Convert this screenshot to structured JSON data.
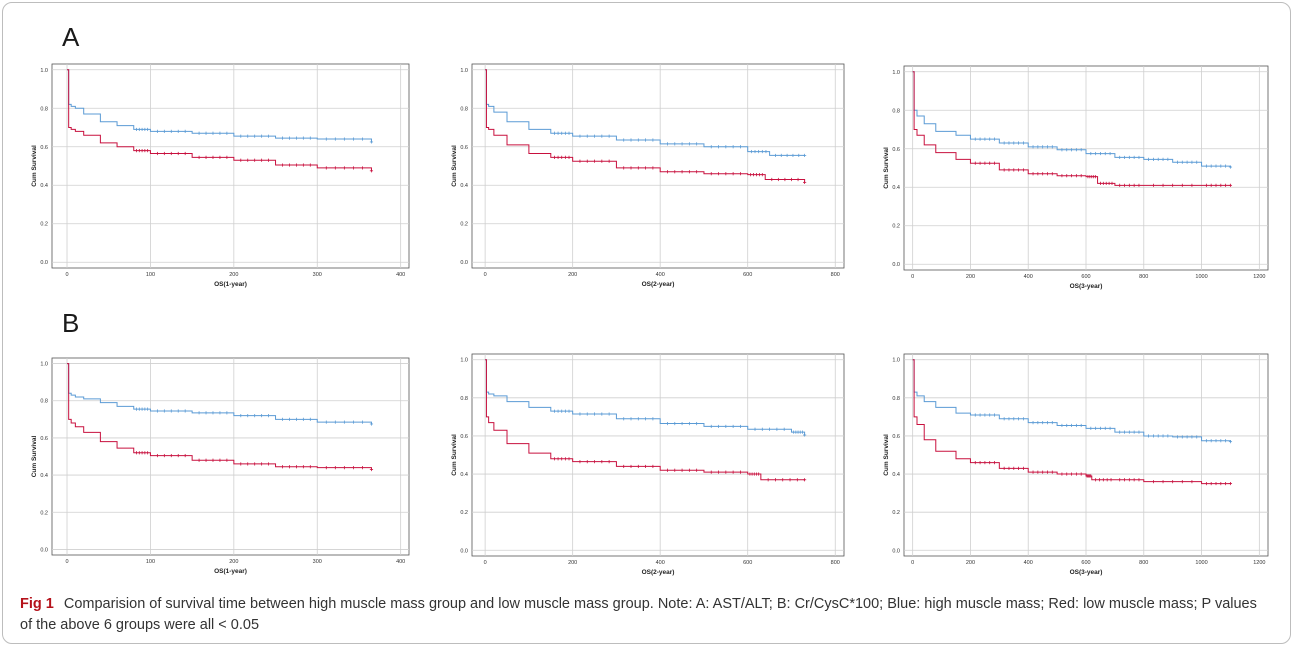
{
  "panels": {
    "a_label": "A",
    "b_label": "B"
  },
  "caption": {
    "fig_label": "Fig 1",
    "text": "Comparision of survival time between high muscle mass group and low muscle mass group. Note: A: AST/ALT; B: Cr/CysC*100; Blue: high muscle mass; Red: low muscle mass; P values of the above 6 groups were all < 0.05"
  },
  "colors": {
    "high": "#5b9bd5",
    "low": "#c8103e",
    "grid": "#cfcfcf",
    "axis": "#555555"
  },
  "chart_data": [
    {
      "type": "line",
      "panel": "A",
      "xlabel": "OS(1-year)",
      "ylabel": "Cum Survival",
      "xlim": [
        -18,
        410
      ],
      "ylim": [
        -0.03,
        1.03
      ],
      "xticks": [
        0,
        100,
        200,
        300,
        400
      ],
      "yticks": [
        0.0,
        0.2,
        0.4,
        0.6,
        0.8,
        1.0
      ],
      "grid": true,
      "series": [
        {
          "x": [
            0,
            2,
            5,
            10,
            20,
            40,
            60,
            80,
            100,
            150,
            200,
            250,
            300,
            365
          ],
          "values": [
            1.0,
            0.82,
            0.81,
            0.8,
            0.77,
            0.73,
            0.71,
            0.69,
            0.68,
            0.67,
            0.655,
            0.645,
            0.64,
            0.625
          ]
        },
        {
          "x": [
            0,
            2,
            5,
            10,
            20,
            40,
            60,
            80,
            100,
            150,
            200,
            250,
            300,
            365
          ],
          "values": [
            1.0,
            0.7,
            0.69,
            0.68,
            0.66,
            0.62,
            0.6,
            0.58,
            0.565,
            0.545,
            0.53,
            0.505,
            0.49,
            0.475
          ]
        }
      ]
    },
    {
      "type": "line",
      "panel": "A",
      "xlabel": "OS(2-year)",
      "ylabel": "Cum Survival",
      "xlim": [
        -30,
        820
      ],
      "ylim": [
        -0.03,
        1.03
      ],
      "xticks": [
        0,
        200,
        400,
        600,
        800
      ],
      "yticks": [
        0.0,
        0.2,
        0.4,
        0.6,
        0.8,
        1.0
      ],
      "grid": true,
      "series": [
        {
          "x": [
            0,
            3,
            8,
            20,
            50,
            100,
            150,
            200,
            300,
            400,
            500,
            600,
            650,
            730
          ],
          "values": [
            1.0,
            0.82,
            0.81,
            0.78,
            0.73,
            0.69,
            0.67,
            0.655,
            0.635,
            0.615,
            0.6,
            0.575,
            0.555,
            0.555
          ]
        },
        {
          "x": [
            0,
            3,
            8,
            20,
            50,
            100,
            150,
            200,
            300,
            400,
            500,
            600,
            640,
            730
          ],
          "values": [
            1.0,
            0.7,
            0.69,
            0.66,
            0.61,
            0.565,
            0.545,
            0.525,
            0.49,
            0.47,
            0.46,
            0.455,
            0.43,
            0.415
          ]
        }
      ]
    },
    {
      "type": "line",
      "panel": "A",
      "xlabel": "OS(3-year)",
      "ylabel": "Cum Survival",
      "xlim": [
        -30,
        1230
      ],
      "ylim": [
        -0.03,
        1.03
      ],
      "xticks": [
        0,
        200,
        400,
        600,
        800,
        1000,
        1200
      ],
      "yticks": [
        0.0,
        0.2,
        0.4,
        0.6,
        0.8,
        1.0
      ],
      "grid": true,
      "series": [
        {
          "x": [
            0,
            5,
            15,
            40,
            80,
            150,
            200,
            300,
            400,
            500,
            600,
            700,
            800,
            900,
            1000,
            1100
          ],
          "values": [
            1.0,
            0.8,
            0.77,
            0.73,
            0.69,
            0.67,
            0.65,
            0.63,
            0.61,
            0.595,
            0.575,
            0.555,
            0.545,
            0.53,
            0.51,
            0.505
          ]
        },
        {
          "x": [
            0,
            5,
            15,
            40,
            80,
            150,
            200,
            300,
            400,
            500,
            600,
            640,
            700,
            800,
            1000,
            1100
          ],
          "values": [
            1.0,
            0.7,
            0.67,
            0.62,
            0.58,
            0.545,
            0.525,
            0.49,
            0.47,
            0.46,
            0.455,
            0.42,
            0.41,
            0.41,
            0.41,
            0.41
          ]
        }
      ]
    },
    {
      "type": "line",
      "panel": "B",
      "xlabel": "OS(1-year)",
      "ylabel": "Cum Survival",
      "xlim": [
        -18,
        410
      ],
      "ylim": [
        -0.03,
        1.03
      ],
      "xticks": [
        0,
        100,
        200,
        300,
        400
      ],
      "yticks": [
        0.0,
        0.2,
        0.4,
        0.6,
        0.8,
        1.0
      ],
      "grid": true,
      "series": [
        {
          "x": [
            0,
            2,
            5,
            10,
            20,
            40,
            60,
            80,
            100,
            150,
            200,
            250,
            300,
            365
          ],
          "values": [
            1.0,
            0.84,
            0.83,
            0.82,
            0.81,
            0.79,
            0.77,
            0.755,
            0.745,
            0.735,
            0.72,
            0.7,
            0.685,
            0.675
          ]
        },
        {
          "x": [
            0,
            2,
            5,
            10,
            20,
            40,
            60,
            80,
            100,
            150,
            200,
            250,
            300,
            365
          ],
          "values": [
            1.0,
            0.7,
            0.68,
            0.66,
            0.63,
            0.58,
            0.545,
            0.52,
            0.505,
            0.48,
            0.46,
            0.445,
            0.44,
            0.43
          ]
        }
      ]
    },
    {
      "type": "line",
      "panel": "B",
      "xlabel": "OS(2-year)",
      "ylabel": "Cum Survival",
      "xlim": [
        -30,
        820
      ],
      "ylim": [
        -0.03,
        1.03
      ],
      "xticks": [
        0,
        200,
        400,
        600,
        800
      ],
      "yticks": [
        0.0,
        0.2,
        0.4,
        0.6,
        0.8,
        1.0
      ],
      "grid": true,
      "series": [
        {
          "x": [
            0,
            3,
            8,
            20,
            50,
            100,
            150,
            200,
            300,
            400,
            500,
            600,
            700,
            730
          ],
          "values": [
            1.0,
            0.83,
            0.82,
            0.81,
            0.78,
            0.75,
            0.73,
            0.715,
            0.69,
            0.665,
            0.65,
            0.635,
            0.62,
            0.605
          ]
        },
        {
          "x": [
            0,
            3,
            8,
            20,
            50,
            100,
            150,
            200,
            300,
            400,
            500,
            600,
            630,
            730
          ],
          "values": [
            1.0,
            0.7,
            0.67,
            0.63,
            0.56,
            0.51,
            0.48,
            0.465,
            0.44,
            0.42,
            0.41,
            0.4,
            0.37,
            0.37
          ]
        }
      ]
    },
    {
      "type": "line",
      "panel": "B",
      "xlabel": "OS(3-year)",
      "ylabel": "Cum Survival",
      "xlim": [
        -30,
        1230
      ],
      "ylim": [
        -0.03,
        1.03
      ],
      "xticks": [
        0,
        200,
        400,
        600,
        800,
        1000,
        1200
      ],
      "yticks": [
        0.0,
        0.2,
        0.4,
        0.6,
        0.8,
        1.0
      ],
      "grid": true,
      "series": [
        {
          "x": [
            0,
            5,
            15,
            40,
            80,
            150,
            200,
            300,
            400,
            500,
            600,
            700,
            800,
            900,
            1000,
            1100
          ],
          "values": [
            1.0,
            0.83,
            0.81,
            0.78,
            0.75,
            0.72,
            0.71,
            0.69,
            0.67,
            0.655,
            0.64,
            0.62,
            0.6,
            0.595,
            0.575,
            0.57
          ]
        },
        {
          "x": [
            0,
            5,
            15,
            40,
            80,
            150,
            200,
            300,
            400,
            500,
            600,
            620,
            700,
            800,
            1000,
            1100
          ],
          "values": [
            1.0,
            0.7,
            0.66,
            0.58,
            0.52,
            0.48,
            0.46,
            0.43,
            0.41,
            0.4,
            0.39,
            0.37,
            0.37,
            0.36,
            0.35,
            0.35
          ]
        }
      ]
    }
  ]
}
